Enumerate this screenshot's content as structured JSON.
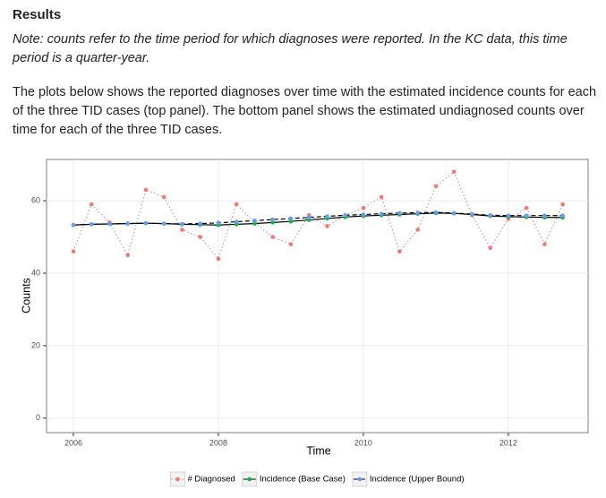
{
  "header": {
    "title": "Results",
    "note": "Note: counts refer to the time period for which diagnoses were reported. In the KC data, this time period is a quarter-year.",
    "paragraph": "The plots below shows the reported diagnoses over time with the estimated incidence counts for each of the three TID cases (top panel). The bottom panel shows the estimated undiagnosed counts over time for each of the three TID cases."
  },
  "chart_data": {
    "type": "line",
    "x_label": "Time",
    "y_label": "Counts",
    "x": [
      2006,
      2006.25,
      2006.5,
      2006.75,
      2007,
      2007.25,
      2007.5,
      2007.75,
      2008,
      2008.25,
      2008.5,
      2008.75,
      2009,
      2009.25,
      2009.5,
      2009.75,
      2010,
      2010.25,
      2010.5,
      2010.75,
      2011,
      2011.25,
      2011.5,
      2011.75,
      2012,
      2012.25,
      2012.5,
      2012.75
    ],
    "series": [
      {
        "name": "# Diagnosed",
        "color": "#f8766d",
        "line": "dotted",
        "values": [
          46,
          59,
          54,
          45,
          63,
          61,
          52,
          50,
          44,
          59,
          54,
          50,
          48,
          56,
          53,
          56,
          58,
          61,
          46,
          52,
          64,
          68,
          56,
          47,
          55,
          58,
          48,
          59
        ]
      },
      {
        "name": "Incidence (Base Case)",
        "color": "#00ba38",
        "line": "solid",
        "values": [
          53.3,
          53.5,
          53.6,
          53.7,
          53.8,
          53.7,
          53.5,
          53.4,
          53.3,
          53.5,
          53.7,
          54.0,
          54.3,
          54.7,
          55.1,
          55.5,
          55.8,
          56.0,
          56.2,
          56.4,
          56.6,
          56.5,
          56.2,
          55.8,
          55.6,
          55.5,
          55.4,
          55.4
        ]
      },
      {
        "name": "Incidence (Upper Bound)",
        "color": "#619cff",
        "line": "dashed",
        "values": [
          53.3,
          53.5,
          53.6,
          53.7,
          53.8,
          53.7,
          53.6,
          53.7,
          53.9,
          54.2,
          54.5,
          54.8,
          55.1,
          55.4,
          55.7,
          56.0,
          56.2,
          56.4,
          56.6,
          56.7,
          56.8,
          56.6,
          56.3,
          56.0,
          55.9,
          55.9,
          55.9,
          55.9
        ]
      }
    ],
    "xlim": [
      2005.63,
      2013.1
    ],
    "xticks": [
      2006,
      2008,
      2010,
      2012
    ],
    "ylim": [
      -4,
      71.4
    ],
    "yticks": [
      0,
      20,
      40,
      60
    ],
    "grid": true,
    "legend": "bottom"
  }
}
